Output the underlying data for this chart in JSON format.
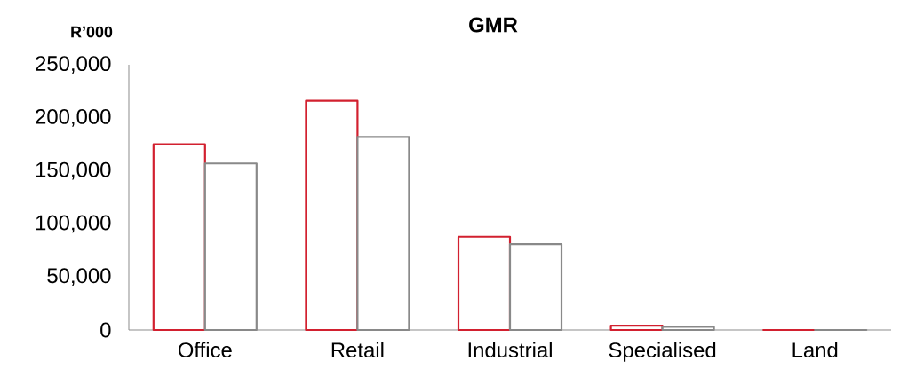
{
  "chart_data": {
    "type": "bar",
    "title": "GMR",
    "ylabel": "R’000",
    "categories": [
      "Office",
      "Retail",
      "Industrial",
      "Specialised",
      "Land"
    ],
    "series": [
      {
        "color": "#d2202f",
        "values": [
          175000,
          216000,
          88000,
          4000,
          0
        ]
      },
      {
        "color": "#898989",
        "values": [
          157000,
          182000,
          81000,
          3000,
          0
        ]
      }
    ],
    "ylim": [
      0,
      250000
    ],
    "yticks": [
      {
        "value": 0,
        "label": "0"
      },
      {
        "value": 50000,
        "label": "50,000"
      },
      {
        "value": 100000,
        "label": "100,000"
      },
      {
        "value": 150000,
        "label": "150,000"
      },
      {
        "value": 200000,
        "label": "200,000"
      },
      {
        "value": 250000,
        "label": "250,000"
      }
    ],
    "grid": false
  }
}
